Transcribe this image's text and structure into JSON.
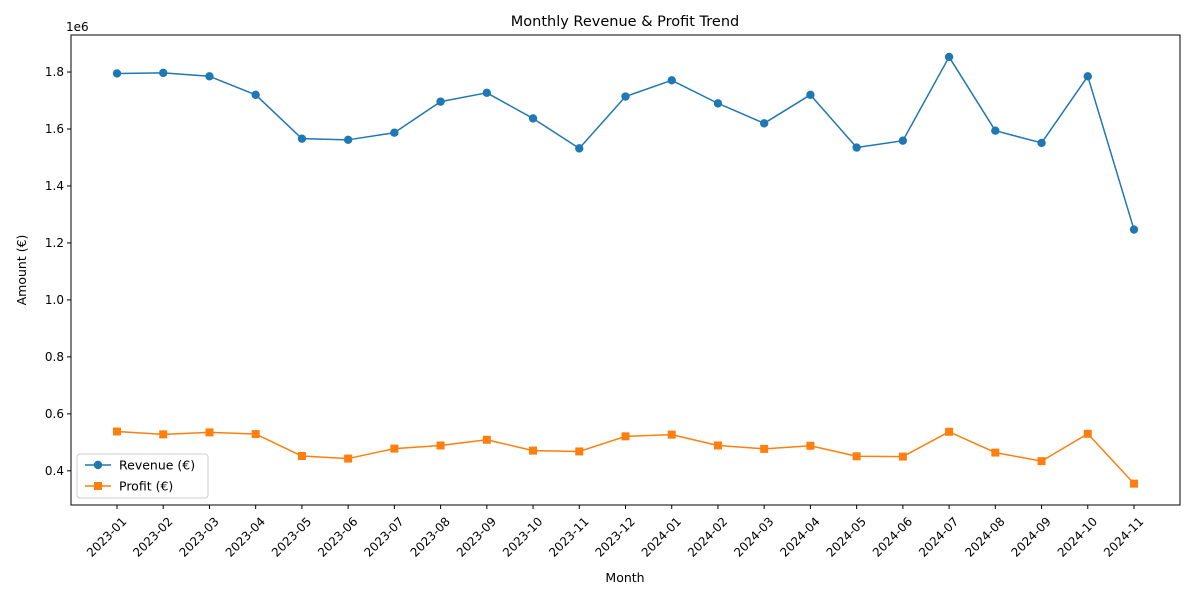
{
  "chart_data": {
    "type": "line",
    "title": "Monthly Revenue & Profit Trend",
    "xlabel": "Month",
    "ylabel": "Amount (€)",
    "y_offset_label": "1e6",
    "y_scale": 1000000,
    "ylim": [
      0.28,
      1.93
    ],
    "yticks": [
      0.4,
      0.6,
      0.8,
      1.0,
      1.2,
      1.4,
      1.6,
      1.8
    ],
    "ytick_labels": [
      "0.4",
      "0.6",
      "0.8",
      "1.0",
      "1.2",
      "1.4",
      "1.6",
      "1.8"
    ],
    "categories": [
      "2023-01",
      "2023-02",
      "2023-03",
      "2023-04",
      "2023-05",
      "2023-06",
      "2023-07",
      "2023-08",
      "2023-09",
      "2023-10",
      "2023-11",
      "2023-12",
      "2024-01",
      "2024-02",
      "2024-03",
      "2024-04",
      "2024-05",
      "2024-06",
      "2024-07",
      "2024-08",
      "2024-09",
      "2024-10",
      "2024-11"
    ],
    "series": [
      {
        "name": "Revenue (€)",
        "color": "#1f77b4",
        "marker": "circle",
        "values": [
          1.795,
          1.797,
          1.785,
          1.72,
          1.566,
          1.562,
          1.587,
          1.696,
          1.727,
          1.637,
          1.532,
          1.714,
          1.771,
          1.69,
          1.62,
          1.72,
          1.535,
          1.559,
          1.853,
          1.594,
          1.551,
          1.785,
          1.247
        ]
      },
      {
        "name": "Profit (€)",
        "color": "#ff7f0e",
        "marker": "square",
        "values": [
          0.538,
          0.528,
          0.535,
          0.529,
          0.452,
          0.443,
          0.478,
          0.489,
          0.509,
          0.471,
          0.468,
          0.521,
          0.527,
          0.489,
          0.477,
          0.488,
          0.451,
          0.45,
          0.537,
          0.464,
          0.434,
          0.53,
          0.355
        ]
      }
    ],
    "legend_position": "lower-left",
    "grid": false
  }
}
